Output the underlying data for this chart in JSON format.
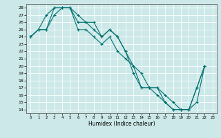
{
  "title": "",
  "xlabel": "Humidex (Indice chaleur)",
  "xlim": [
    -0.5,
    23.5
  ],
  "ylim": [
    13.5,
    28.5
  ],
  "yticks": [
    14,
    15,
    16,
    17,
    18,
    19,
    20,
    21,
    22,
    23,
    24,
    25,
    26,
    27,
    28
  ],
  "xticks": [
    0,
    1,
    2,
    3,
    4,
    5,
    6,
    7,
    8,
    9,
    10,
    11,
    12,
    13,
    14,
    15,
    16,
    17,
    18,
    19,
    20,
    21,
    22,
    23
  ],
  "bg_color": "#cce8e8",
  "grid_color": "#ffffff",
  "line_color": "#007070",
  "line1_x": [
    0,
    1,
    2,
    3,
    4,
    5,
    6,
    7,
    8,
    9,
    10,
    11,
    12,
    13,
    14,
    15,
    16,
    17,
    18,
    19,
    20,
    21,
    22
  ],
  "line1_y": [
    24,
    25,
    25,
    28,
    28,
    28,
    26,
    26,
    25,
    24,
    25,
    24,
    22,
    20,
    17,
    17,
    17,
    16,
    15,
    14,
    14,
    15,
    20
  ],
  "line2_x": [
    0,
    1,
    2,
    3,
    4,
    5,
    6,
    7,
    8,
    9,
    10,
    11,
    12,
    13,
    14,
    15,
    16,
    17,
    18,
    19,
    20,
    21,
    22
  ],
  "line2_y": [
    24,
    25,
    27,
    28,
    28,
    28,
    27,
    26,
    26,
    24,
    25,
    24,
    22,
    19,
    17,
    17,
    17,
    15,
    14,
    14,
    14,
    17,
    20
  ],
  "line3_x": [
    0,
    1,
    2,
    3,
    4,
    5,
    6,
    7,
    8,
    9,
    10,
    11,
    12,
    13,
    14,
    15,
    16,
    17,
    18,
    19,
    20,
    21,
    22
  ],
  "line3_y": [
    24,
    25,
    25,
    27,
    28,
    28,
    25,
    25,
    24,
    23,
    24,
    22,
    21,
    20,
    19,
    17,
    16,
    15,
    14,
    14,
    14,
    17,
    20
  ]
}
